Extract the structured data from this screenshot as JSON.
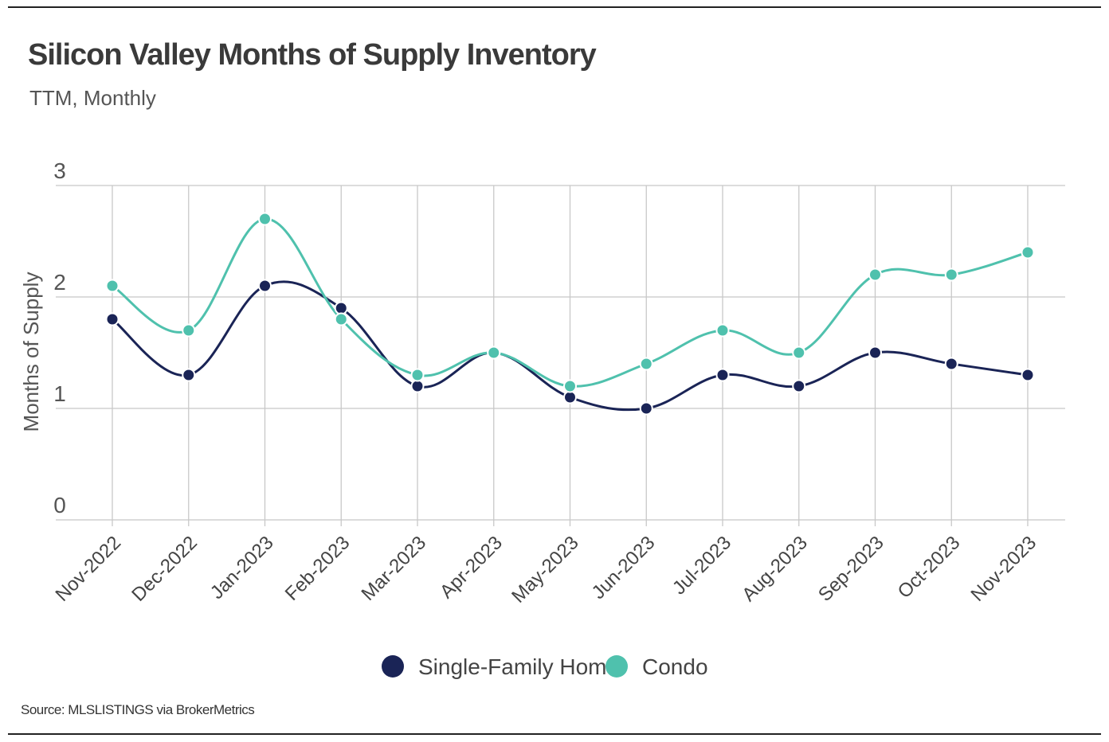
{
  "title": "Silicon Valley Months of Supply Inventory",
  "subtitle": "TTM, Monthly",
  "source": "Source:  MLSLISTINGS via BrokerMetrics",
  "chart_data": {
    "type": "line",
    "title": "Silicon Valley Months of Supply Inventory",
    "subtitle": "TTM, Monthly",
    "xlabel": "",
    "ylabel": "Months of Supply",
    "ylim": [
      0,
      3
    ],
    "yticks": [
      "0",
      "1",
      "2",
      "3"
    ],
    "grid": true,
    "smooth": true,
    "legend_position": "bottom-center",
    "categories": [
      "Nov-2022",
      "Dec-2022",
      "Jan-2023",
      "Feb-2023",
      "Mar-2023",
      "Apr-2023",
      "May-2023",
      "Jun-2023",
      "Jul-2023",
      "Aug-2023",
      "Sep-2023",
      "Oct-2023",
      "Nov-2023"
    ],
    "series": [
      {
        "name": "Single-Family Home",
        "color": "#1a2456",
        "values": [
          1.8,
          1.3,
          2.1,
          1.9,
          1.2,
          1.5,
          1.1,
          1.0,
          1.3,
          1.2,
          1.5,
          1.4,
          1.3
        ]
      },
      {
        "name": "Condo",
        "color": "#4fc1ad",
        "values": [
          2.1,
          1.7,
          2.7,
          1.8,
          1.3,
          1.5,
          1.2,
          1.4,
          1.7,
          1.5,
          2.2,
          2.2,
          2.4
        ]
      }
    ]
  }
}
